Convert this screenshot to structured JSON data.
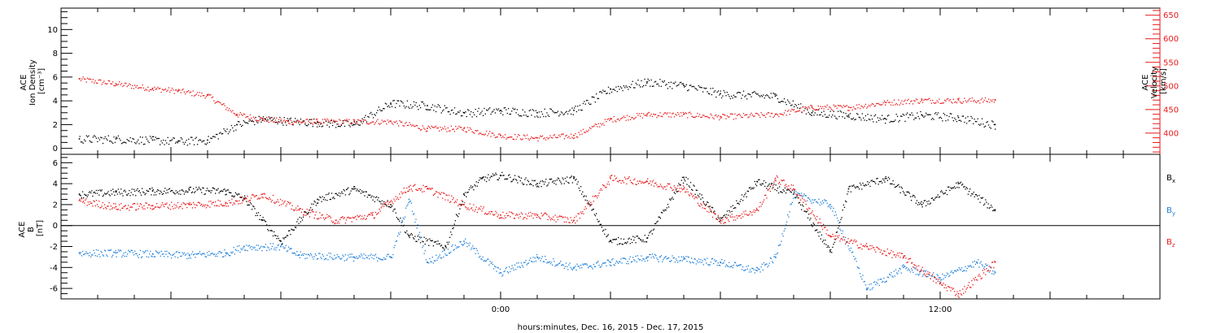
{
  "chart_data": [
    {
      "type": "scatter",
      "panel": "ace-plasma",
      "ylabel_lines": [
        "ACE",
        "Ion Density",
        "[cm⁻³]"
      ],
      "y2label_lines": [
        "ACE",
        "Velocity",
        "[km/s]"
      ],
      "ylim": [
        -0.5,
        11.8
      ],
      "y_ticks": [
        0,
        2,
        4,
        6,
        8,
        10
      ],
      "y2lim": [
        355,
        665
      ],
      "y2_ticks": [
        400,
        450,
        500,
        550,
        600,
        650
      ],
      "colors": {
        "density": "#000000",
        "velocity": "#e8191a"
      },
      "density_points": [
        [
          -11.5,
          0.8
        ],
        [
          -10.5,
          0.8
        ],
        [
          -9.5,
          0.7
        ],
        [
          -8.8,
          0.6
        ],
        [
          -8.0,
          0.7
        ],
        [
          -7.2,
          2.0
        ],
        [
          -6.5,
          2.5
        ],
        [
          -5.8,
          2.3
        ],
        [
          -5.0,
          2.2
        ],
        [
          -4.0,
          2.0
        ],
        [
          -3.0,
          3.8
        ],
        [
          -2.0,
          3.6
        ],
        [
          -1.0,
          3.0
        ],
        [
          0,
          3.2
        ],
        [
          1.0,
          3.0
        ],
        [
          2.0,
          3.2
        ],
        [
          3.0,
          5.0
        ],
        [
          4.0,
          5.6
        ],
        [
          5.0,
          5.3
        ],
        [
          6.0,
          4.6
        ],
        [
          7.5,
          4.4
        ],
        [
          8.5,
          3.0
        ],
        [
          9.5,
          2.8
        ],
        [
          10.5,
          2.5
        ],
        [
          11.5,
          2.8
        ],
        [
          12.5,
          2.6
        ],
        [
          13.5,
          2.0
        ]
      ],
      "velocity_points": [
        [
          -11.5,
          515
        ],
        [
          -10.5,
          505
        ],
        [
          -9.5,
          495
        ],
        [
          -8.8,
          490
        ],
        [
          -8.0,
          480
        ],
        [
          -7.2,
          440
        ],
        [
          -6.5,
          430
        ],
        [
          -5.8,
          425
        ],
        [
          -5.0,
          425
        ],
        [
          -4.0,
          425
        ],
        [
          -3.0,
          425
        ],
        [
          -2.0,
          410
        ],
        [
          -1.0,
          410
        ],
        [
          0,
          395
        ],
        [
          1.0,
          390
        ],
        [
          2.0,
          395
        ],
        [
          3.0,
          430
        ],
        [
          4.0,
          440
        ],
        [
          5.0,
          440
        ],
        [
          6.0,
          435
        ],
        [
          7.5,
          440
        ],
        [
          8.5,
          455
        ],
        [
          9.5,
          455
        ],
        [
          10.5,
          465
        ],
        [
          11.5,
          470
        ],
        [
          12.5,
          470
        ],
        [
          13.5,
          470
        ]
      ]
    },
    {
      "type": "scatter",
      "panel": "ace-magnetic-field",
      "ylabel_lines": [
        "ACE",
        "B",
        "[nT]"
      ],
      "ylim": [
        -7.0,
        6.8
      ],
      "y_ticks": [
        -6,
        -4,
        -2,
        0,
        2,
        4,
        6
      ],
      "colors": {
        "Bx": "#000000",
        "By": "#1e7fd8",
        "Bz": "#e8191a"
      },
      "legend": [
        {
          "key": "Bx",
          "label": "B",
          "sub": "x"
        },
        {
          "key": "By",
          "label": "B",
          "sub": "y"
        },
        {
          "key": "Bz",
          "label": "B",
          "sub": "z"
        }
      ],
      "bx_points": [
        [
          -11.5,
          3.0
        ],
        [
          -10.5,
          3.2
        ],
        [
          -9.5,
          3.3
        ],
        [
          -8.5,
          3.4
        ],
        [
          -7.5,
          3.3
        ],
        [
          -7.0,
          2.6
        ],
        [
          -6.5,
          0.5
        ],
        [
          -6.0,
          -1.5
        ],
        [
          -5.0,
          2.5
        ],
        [
          -4.0,
          3.5
        ],
        [
          -3.0,
          2.0
        ],
        [
          -2.5,
          -1.0
        ],
        [
          -1.5,
          -2.0
        ],
        [
          -1.0,
          3.0
        ],
        [
          -0.5,
          4.5
        ],
        [
          0,
          4.8
        ],
        [
          1.0,
          4.0
        ],
        [
          2.0,
          4.5
        ],
        [
          3.0,
          -1.5
        ],
        [
          4.0,
          -1.2
        ],
        [
          5.0,
          4.6
        ],
        [
          6.0,
          0.5
        ],
        [
          7.0,
          4.2
        ],
        [
          8.0,
          3.0
        ],
        [
          9.0,
          -2.5
        ],
        [
          9.5,
          3.5
        ],
        [
          10.5,
          4.5
        ],
        [
          11.5,
          2.0
        ],
        [
          12.5,
          4.0
        ],
        [
          13.5,
          1.5
        ]
      ],
      "by_points": [
        [
          -11.5,
          -2.6
        ],
        [
          -10.5,
          -2.6
        ],
        [
          -9.5,
          -2.7
        ],
        [
          -8.5,
          -2.8
        ],
        [
          -7.5,
          -2.6
        ],
        [
          -7.0,
          -2.0
        ],
        [
          -6.0,
          -2.0
        ],
        [
          -5.5,
          -2.8
        ],
        [
          -4.0,
          -3.0
        ],
        [
          -3.0,
          -3.0
        ],
        [
          -2.5,
          2.5
        ],
        [
          -2.0,
          -3.5
        ],
        [
          -1.0,
          -1.5
        ],
        [
          0,
          -4.5
        ],
        [
          1.0,
          -3.0
        ],
        [
          2.0,
          -4.0
        ],
        [
          3.0,
          -3.5
        ],
        [
          4.0,
          -3.0
        ],
        [
          5.0,
          -3.2
        ],
        [
          6.0,
          -3.5
        ],
        [
          7.0,
          -4.3
        ],
        [
          7.5,
          -3.0
        ],
        [
          8.0,
          3.0
        ],
        [
          9.0,
          2.0
        ],
        [
          10.0,
          -6.0
        ],
        [
          11.0,
          -4.0
        ],
        [
          12.0,
          -5.0
        ],
        [
          13.0,
          -3.5
        ],
        [
          13.5,
          -4.5
        ]
      ],
      "bz_points": [
        [
          -11.5,
          2.4
        ],
        [
          -10.5,
          1.8
        ],
        [
          -9.5,
          1.9
        ],
        [
          -8.5,
          2.0
        ],
        [
          -7.5,
          2.2
        ],
        [
          -7.0,
          2.5
        ],
        [
          -6.5,
          3.0
        ],
        [
          -5.5,
          1.5
        ],
        [
          -4.5,
          0.5
        ],
        [
          -3.5,
          1.0
        ],
        [
          -2.5,
          3.7
        ],
        [
          -2.0,
          3.5
        ],
        [
          -1.0,
          2.0
        ],
        [
          0,
          1.0
        ],
        [
          1.0,
          1.0
        ],
        [
          2.0,
          0.5
        ],
        [
          3.0,
          4.5
        ],
        [
          4.0,
          4.2
        ],
        [
          5.0,
          3.5
        ],
        [
          6.0,
          0.5
        ],
        [
          7.0,
          1.5
        ],
        [
          7.5,
          4.5
        ],
        [
          8.0,
          3.5
        ],
        [
          9.0,
          -1.0
        ],
        [
          10.0,
          -2.0
        ],
        [
          11.0,
          -3.0
        ],
        [
          12.0,
          -5.5
        ],
        [
          12.5,
          -6.5
        ],
        [
          13.5,
          -3.5
        ]
      ]
    }
  ],
  "x_axis": {
    "range": [
      -12,
      18
    ],
    "tick_labels": [
      {
        "x": 0,
        "label": "0:00"
      },
      {
        "x": 12,
        "label": "12:00"
      }
    ],
    "xlabel": "hours:minutes, Dec. 16, 2015 - Dec. 17, 2015"
  }
}
